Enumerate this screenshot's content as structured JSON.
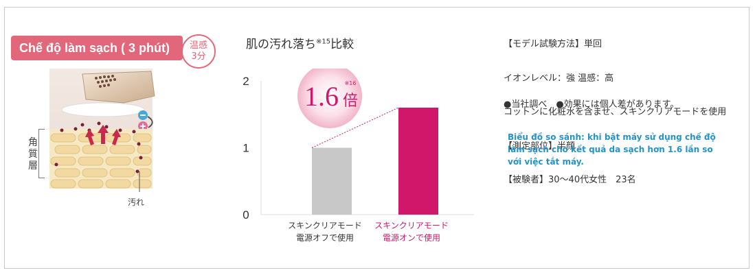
{
  "left_panel": {
    "mode_label": "Chế độ làm sạch ( 3 phút)",
    "temp_badge_line1": "温感",
    "temp_badge_line2": "3分",
    "stratum_label": "角質層",
    "dirt_label": "汚れ"
  },
  "method": {
    "lines": [
      "【モデル試験方法】単回",
      "イオンレベル：強 温感：高",
      "コットンに化粧水を含ませ、スキンクリアモードを使用",
      "【測定部位】半顔",
      "【被験者】30～40代女性　23名"
    ],
    "note": "●当社調べ　●効果には個人差があります。"
  },
  "caption_vi": "Biểu đồ so sánh: khi bật máy sử dụng chế độ làm sạch cho kết quả da sạch hơn 1.6 lần so với việc tắt máy.",
  "chart_data": {
    "type": "bar",
    "title": "肌の汚れ落ち",
    "title_sup": "※15",
    "title_suffix": "比較",
    "categories": [
      [
        "スキンクリアモード",
        "電源オフで使用"
      ],
      [
        "スキンクリアモード",
        "電源オンで使用"
      ]
    ],
    "values": [
      1,
      1.6
    ],
    "ylim": [
      0,
      2
    ],
    "yticks": [
      "0",
      "1",
      "2"
    ],
    "grid": false,
    "colors": [
      "#c8c8c8",
      "#d0176a"
    ],
    "label_colors": [
      "#333333",
      "#d0176a"
    ],
    "callout_value": "1.6",
    "callout_unit": "倍",
    "callout_sup": "※16"
  }
}
